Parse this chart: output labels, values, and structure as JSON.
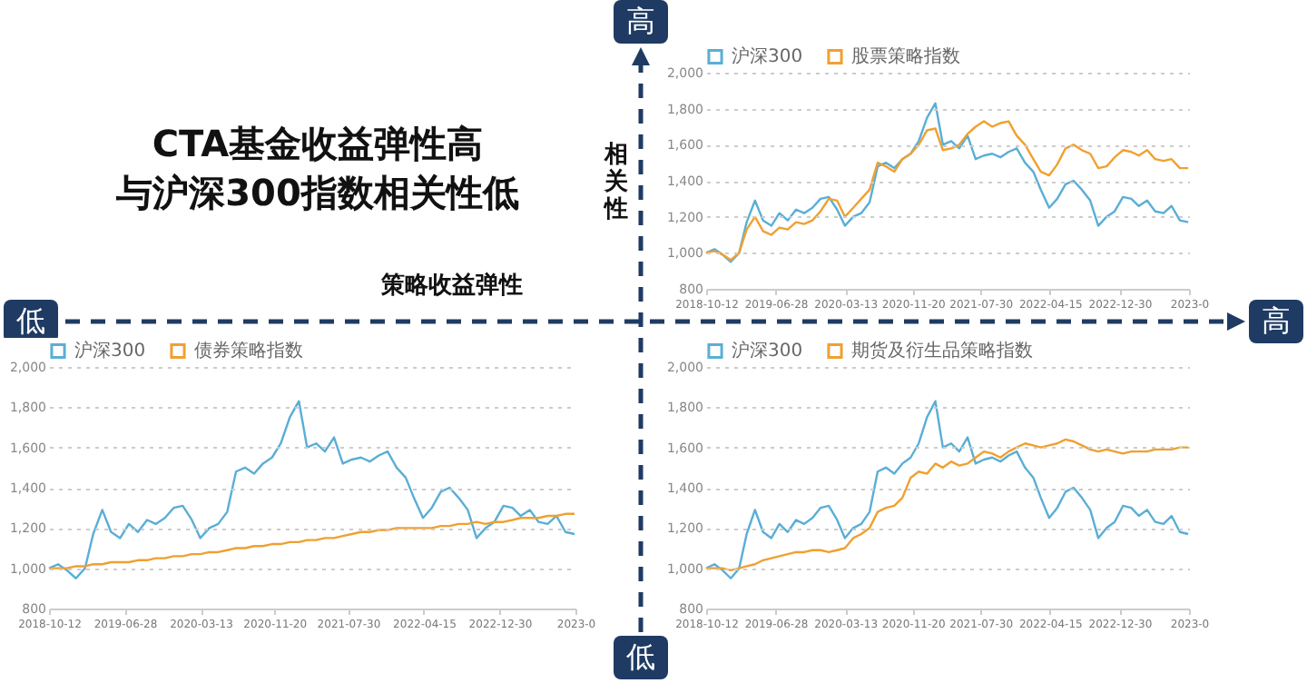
{
  "chart_data": [
    {
      "type": "other",
      "title": "CTA基金收益弹性高",
      "subtitle": "与沪深300指数相关性低",
      "xlabel": "策略收益弹性",
      "ylabel": "相关性",
      "annotations": [
        "低",
        "高",
        "高",
        "低"
      ]
    },
    {
      "type": "line",
      "legend": "top",
      "grid": "y",
      "x": [
        "2018-10-12",
        "2018-11-12",
        "2018-12-12",
        "2019-01-12",
        "2019-02-12",
        "2019-03-12",
        "2019-04-12",
        "2019-05-12",
        "2019-06-12",
        "2019-07-12",
        "2019-08-12",
        "2019-09-12",
        "2019-10-12",
        "2019-11-12",
        "2019-12-12",
        "2020-01-12",
        "2020-02-12",
        "2020-03-12",
        "2020-04-12",
        "2020-05-12",
        "2020-06-12",
        "2020-07-12",
        "2020-08-12",
        "2020-09-12",
        "2020-10-12",
        "2020-11-12",
        "2020-12-12",
        "2021-01-12",
        "2021-02-12",
        "2021-03-12",
        "2021-04-12",
        "2021-05-12",
        "2021-06-12",
        "2021-07-12",
        "2021-08-12",
        "2021-09-12",
        "2021-10-12",
        "2021-11-12",
        "2021-12-12",
        "2022-01-12",
        "2022-02-12",
        "2022-03-12",
        "2022-04-12",
        "2022-05-12",
        "2022-06-12",
        "2022-07-12",
        "2022-08-12",
        "2022-09-12",
        "2022-10-12",
        "2022-11-12",
        "2022-12-12",
        "2023-01-12",
        "2023-02-12",
        "2023-03-12",
        "2023-04-12",
        "2023-05-12",
        "2023-06-12",
        "2023-07-12",
        "2023-08-12",
        "2023-09-12"
      ],
      "xlim": [
        "2018-10-12",
        "2023-09-15"
      ],
      "xticks": [
        {
          "value": "2018-10-12",
          "label": "2018-10-12"
        },
        {
          "value": "2019-06-28",
          "label": "2019-06-28"
        },
        {
          "value": "2020-03-13",
          "label": "2020-03-13"
        },
        {
          "value": "2020-11-20",
          "label": "2020-11-20"
        },
        {
          "value": "2021-07-30",
          "label": "2021-07-30"
        },
        {
          "value": "2022-04-15",
          "label": "2022-04-15"
        },
        {
          "value": "2022-12-30",
          "label": "2022-12-30"
        },
        {
          "value": "2023-09-15",
          "label": "2023-0"
        }
      ],
      "ylim": [
        800,
        2000
      ],
      "yticks": [
        {
          "value": 800,
          "label": "800"
        },
        {
          "value": 1000,
          "label": "1,000"
        },
        {
          "value": 1200,
          "label": "1,200"
        },
        {
          "value": 1400,
          "label": "1,400"
        },
        {
          "value": 1600,
          "label": "1,600"
        },
        {
          "value": 1800,
          "label": "1,800"
        },
        {
          "value": 2000,
          "label": "2,000"
        }
      ],
      "series": [
        {
          "name": "沪深300",
          "color": "#5aaed6",
          "values": [
            1000,
            1020,
            990,
            950,
            1000,
            1170,
            1290,
            1180,
            1150,
            1220,
            1180,
            1240,
            1220,
            1250,
            1300,
            1310,
            1240,
            1150,
            1200,
            1220,
            1280,
            1480,
            1500,
            1470,
            1520,
            1550,
            1620,
            1750,
            1830,
            1600,
            1620,
            1580,
            1650,
            1520,
            1540,
            1550,
            1530,
            1560,
            1580,
            1500,
            1450,
            1350,
            1250,
            1300,
            1380,
            1400,
            1350,
            1290,
            1150,
            1200,
            1230,
            1310,
            1300,
            1260,
            1290,
            1230,
            1220,
            1260,
            1180,
            1170
          ]
        },
        {
          "name": "股票策略指数",
          "color": "#f0a030",
          "values": [
            1000,
            1010,
            990,
            960,
            1000,
            1130,
            1200,
            1120,
            1100,
            1140,
            1130,
            1170,
            1160,
            1180,
            1230,
            1300,
            1290,
            1200,
            1250,
            1300,
            1350,
            1500,
            1480,
            1450,
            1520,
            1550,
            1600,
            1680,
            1690,
            1570,
            1580,
            1600,
            1660,
            1700,
            1730,
            1700,
            1720,
            1730,
            1650,
            1600,
            1520,
            1450,
            1430,
            1490,
            1580,
            1600,
            1570,
            1550,
            1470,
            1480,
            1530,
            1570,
            1560,
            1540,
            1570,
            1520,
            1510,
            1520,
            1470,
            1470
          ]
        }
      ]
    },
    {
      "type": "line",
      "legend": "top",
      "grid": "y",
      "x": [
        "2018-10-12",
        "2018-11-12",
        "2018-12-12",
        "2019-01-12",
        "2019-02-12",
        "2019-03-12",
        "2019-04-12",
        "2019-05-12",
        "2019-06-12",
        "2019-07-12",
        "2019-08-12",
        "2019-09-12",
        "2019-10-12",
        "2019-11-12",
        "2019-12-12",
        "2020-01-12",
        "2020-02-12",
        "2020-03-12",
        "2020-04-12",
        "2020-05-12",
        "2020-06-12",
        "2020-07-12",
        "2020-08-12",
        "2020-09-12",
        "2020-10-12",
        "2020-11-12",
        "2020-12-12",
        "2021-01-12",
        "2021-02-12",
        "2021-03-12",
        "2021-04-12",
        "2021-05-12",
        "2021-06-12",
        "2021-07-12",
        "2021-08-12",
        "2021-09-12",
        "2021-10-12",
        "2021-11-12",
        "2021-12-12",
        "2022-01-12",
        "2022-02-12",
        "2022-03-12",
        "2022-04-12",
        "2022-05-12",
        "2022-06-12",
        "2022-07-12",
        "2022-08-12",
        "2022-09-12",
        "2022-10-12",
        "2022-11-12",
        "2022-12-12",
        "2023-01-12",
        "2023-02-12",
        "2023-03-12",
        "2023-04-12",
        "2023-05-12",
        "2023-06-12",
        "2023-07-12",
        "2023-08-12",
        "2023-09-12"
      ],
      "xlim": [
        "2018-10-12",
        "2023-09-15"
      ],
      "xticks": [
        {
          "value": "2018-10-12",
          "label": "2018-10-12"
        },
        {
          "value": "2019-06-28",
          "label": "2019-06-28"
        },
        {
          "value": "2020-03-13",
          "label": "2020-03-13"
        },
        {
          "value": "2020-11-20",
          "label": "2020-11-20"
        },
        {
          "value": "2021-07-30",
          "label": "2021-07-30"
        },
        {
          "value": "2022-04-15",
          "label": "2022-04-15"
        },
        {
          "value": "2022-12-30",
          "label": "2022-12-30"
        },
        {
          "value": "2023-09-15",
          "label": "2023-0"
        }
      ],
      "ylim": [
        800,
        2000
      ],
      "yticks": [
        800,
        {
          "value": 1000,
          "label": "1,000"
        },
        {
          "value": 1200,
          "label": "1,200"
        },
        {
          "value": 1400,
          "label": "1,400"
        },
        {
          "value": 1600,
          "label": "1,600"
        },
        {
          "value": 1800,
          "label": "1,800"
        },
        {
          "value": 2000,
          "label": "2,000"
        }
      ],
      "series": [
        {
          "name": "沪深300",
          "color": "#5aaed6",
          "values": [
            1000,
            1020,
            990,
            950,
            1000,
            1170,
            1290,
            1180,
            1150,
            1220,
            1180,
            1240,
            1220,
            1250,
            1300,
            1310,
            1240,
            1150,
            1200,
            1220,
            1280,
            1480,
            1500,
            1470,
            1520,
            1550,
            1620,
            1750,
            1830,
            1600,
            1620,
            1580,
            1650,
            1520,
            1540,
            1550,
            1530,
            1560,
            1580,
            1500,
            1450,
            1350,
            1250,
            1300,
            1380,
            1400,
            1350,
            1290,
            1150,
            1200,
            1230,
            1310,
            1300,
            1260,
            1290,
            1230,
            1220,
            1260,
            1180,
            1170
          ]
        },
        {
          "name": "债券策略指数",
          "color": "#f0a030",
          "values": [
            1000,
            1000,
            1000,
            1010,
            1010,
            1020,
            1020,
            1030,
            1030,
            1030,
            1040,
            1040,
            1050,
            1050,
            1060,
            1060,
            1070,
            1070,
            1080,
            1080,
            1090,
            1100,
            1100,
            1110,
            1110,
            1120,
            1120,
            1130,
            1130,
            1140,
            1140,
            1150,
            1150,
            1160,
            1170,
            1180,
            1180,
            1190,
            1190,
            1200,
            1200,
            1200,
            1200,
            1200,
            1210,
            1210,
            1220,
            1220,
            1230,
            1220,
            1230,
            1230,
            1240,
            1250,
            1250,
            1250,
            1260,
            1260,
            1270,
            1270
          ]
        }
      ]
    },
    {
      "type": "line",
      "legend": "top",
      "grid": "y",
      "x": [
        "2018-10-12",
        "2018-11-12",
        "2018-12-12",
        "2019-01-12",
        "2019-02-12",
        "2019-03-12",
        "2019-04-12",
        "2019-05-12",
        "2019-06-12",
        "2019-07-12",
        "2019-08-12",
        "2019-09-12",
        "2019-10-12",
        "2019-11-12",
        "2019-12-12",
        "2020-01-12",
        "2020-02-12",
        "2020-03-12",
        "2020-04-12",
        "2020-05-12",
        "2020-06-12",
        "2020-07-12",
        "2020-08-12",
        "2020-09-12",
        "2020-10-12",
        "2020-11-12",
        "2020-12-12",
        "2021-01-12",
        "2021-02-12",
        "2021-03-12",
        "2021-04-12",
        "2021-05-12",
        "2021-06-12",
        "2021-07-12",
        "2021-08-12",
        "2021-09-12",
        "2021-10-12",
        "2021-11-12",
        "2021-12-12",
        "2022-01-12",
        "2022-02-12",
        "2022-03-12",
        "2022-04-12",
        "2022-05-12",
        "2022-06-12",
        "2022-07-12",
        "2022-08-12",
        "2022-09-12",
        "2022-10-12",
        "2022-11-12",
        "2022-12-12",
        "2023-01-12",
        "2023-02-12",
        "2023-03-12",
        "2023-04-12",
        "2023-05-12",
        "2023-06-12",
        "2023-07-12",
        "2023-08-12",
        "2023-09-12"
      ],
      "xlim": [
        "2018-10-12",
        "2023-09-15"
      ],
      "xticks": [
        {
          "value": "2018-10-12",
          "label": "2018-10-12"
        },
        {
          "value": "2019-06-28",
          "label": "2019-06-28"
        },
        {
          "value": "2020-03-13",
          "label": "2020-03-13"
        },
        {
          "value": "2020-11-20",
          "label": "2020-11-20"
        },
        {
          "value": "2021-07-30",
          "label": "2021-07-30"
        },
        {
          "value": "2022-04-15",
          "label": "2022-04-15"
        },
        {
          "value": "2022-12-30",
          "label": "2022-12-30"
        },
        {
          "value": "2023-09-15",
          "label": "2023-0"
        }
      ],
      "ylim": [
        800,
        2000
      ],
      "yticks": [
        800,
        {
          "value": 1000,
          "label": "1,000"
        },
        {
          "value": 1200,
          "label": "1,200"
        },
        {
          "value": 1400,
          "label": "1,400"
        },
        {
          "value": 1600,
          "label": "1,600"
        },
        {
          "value": 1800,
          "label": "1,800"
        },
        {
          "value": 2000,
          "label": "2,000"
        }
      ],
      "series": [
        {
          "name": "沪深300",
          "color": "#5aaed6",
          "values": [
            1000,
            1020,
            990,
            950,
            1000,
            1170,
            1290,
            1180,
            1150,
            1220,
            1180,
            1240,
            1220,
            1250,
            1300,
            1310,
            1240,
            1150,
            1200,
            1220,
            1280,
            1480,
            1500,
            1470,
            1520,
            1550,
            1620,
            1750,
            1830,
            1600,
            1620,
            1580,
            1650,
            1520,
            1540,
            1550,
            1530,
            1560,
            1580,
            1500,
            1450,
            1350,
            1250,
            1300,
            1380,
            1400,
            1350,
            1290,
            1150,
            1200,
            1230,
            1310,
            1300,
            1260,
            1290,
            1230,
            1220,
            1260,
            1180,
            1170
          ]
        },
        {
          "name": "期货及衍生品策略指数",
          "color": "#f0a030",
          "values": [
            1000,
            1000,
            1000,
            990,
            1000,
            1010,
            1020,
            1040,
            1050,
            1060,
            1070,
            1080,
            1080,
            1090,
            1090,
            1080,
            1090,
            1100,
            1150,
            1170,
            1200,
            1280,
            1300,
            1310,
            1350,
            1450,
            1480,
            1470,
            1520,
            1500,
            1530,
            1510,
            1520,
            1550,
            1580,
            1570,
            1550,
            1580,
            1600,
            1620,
            1610,
            1600,
            1610,
            1620,
            1640,
            1630,
            1610,
            1590,
            1580,
            1590,
            1580,
            1570,
            1580,
            1580,
            1580,
            1590,
            1590,
            1590,
            1600,
            1600
          ]
        }
      ]
    }
  ]
}
